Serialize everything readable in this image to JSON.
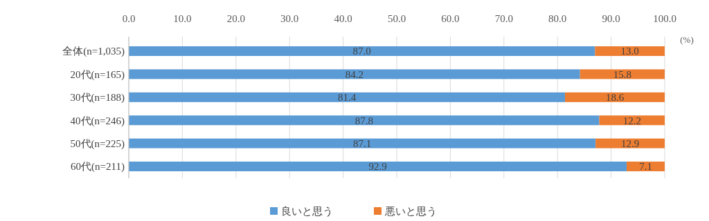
{
  "chart_data": {
    "type": "bar",
    "orientation": "horizontal",
    "stacked": true,
    "xlabel": "(%)",
    "categories": [
      "全体(n=1,035)",
      "20代(n=165)",
      "30代(n=188)",
      "40代(n=246)",
      "50代(n=225)",
      "60代(n=211)"
    ],
    "series": [
      {
        "name": "良いと思う",
        "color": "#5b9bd5",
        "values": [
          87.0,
          84.2,
          81.4,
          87.8,
          87.1,
          92.9
        ],
        "value_labels": [
          "87.0",
          "84.2",
          "81.4",
          "87.8",
          "87.1",
          "92.9"
        ]
      },
      {
        "name": "悪いと思う",
        "color": "#ed7d31",
        "values": [
          13.0,
          15.8,
          18.6,
          12.2,
          12.9,
          7.1
        ],
        "value_labels": [
          "13.0",
          "15.8",
          "18.6",
          "12.2",
          "12.9",
          "7.1"
        ]
      }
    ],
    "xlim": [
      0,
      100
    ],
    "xticks": [
      {
        "value": 0,
        "label": "0.0"
      },
      {
        "value": 10,
        "label": "10.0"
      },
      {
        "value": 20,
        "label": "20.0"
      },
      {
        "value": 30,
        "label": "30.0"
      },
      {
        "value": 40,
        "label": "40.0"
      },
      {
        "value": 50,
        "label": "50.0"
      },
      {
        "value": 60,
        "label": "60.0"
      },
      {
        "value": 70,
        "label": "70.0"
      },
      {
        "value": 80,
        "label": "80.0"
      },
      {
        "value": 90,
        "label": "90.0"
      },
      {
        "value": 100,
        "label": "100.0"
      }
    ],
    "grid": "x",
    "legend": "bottom"
  }
}
